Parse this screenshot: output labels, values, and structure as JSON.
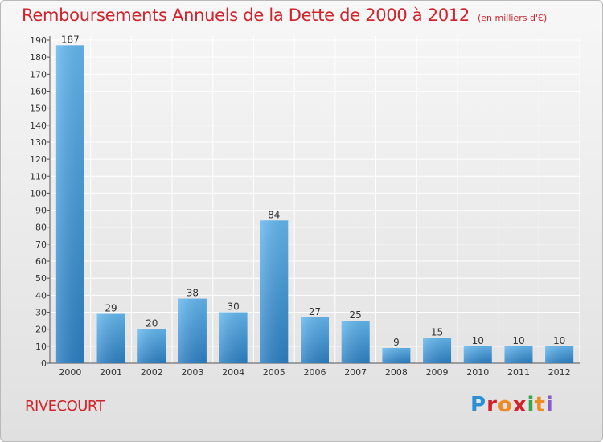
{
  "title": "Remboursements Annuels de la Dette de 2000 à 2012",
  "subtitle": "(en milliers d'€)",
  "commune": "RIVECOURT",
  "logo": {
    "letters": [
      "P",
      "r",
      "o",
      "x",
      "i",
      "t",
      "i"
    ],
    "colors": [
      "#2b8fd6",
      "#d2232a",
      "#f08a24",
      "#d2232a",
      "#3aa64c",
      "#f08a24",
      "#8a5bc7"
    ]
  },
  "colors": {
    "bar_light": "#63b7ee",
    "bar_dark": "#2c7fc3",
    "text_red": "#d2232a"
  },
  "chart_data": {
    "type": "bar",
    "categories": [
      "2000",
      "2001",
      "2002",
      "2003",
      "2004",
      "2005",
      "2006",
      "2007",
      "2008",
      "2009",
      "2010",
      "2011",
      "2012"
    ],
    "values": [
      187,
      29,
      20,
      38,
      30,
      84,
      27,
      25,
      9,
      15,
      10,
      10,
      10
    ],
    "data_labels": [
      "187",
      "29",
      "20",
      "38",
      "30",
      "84",
      "27",
      "25",
      "9",
      "15",
      "10",
      "10",
      "10"
    ],
    "title": "Remboursements Annuels de la Dette de 2000 à 2012",
    "xlabel": "",
    "ylabel": "",
    "ylim": [
      0,
      190
    ],
    "yticks": [
      0,
      10,
      20,
      30,
      40,
      50,
      60,
      70,
      80,
      90,
      100,
      110,
      120,
      130,
      140,
      150,
      160,
      170,
      180,
      190
    ],
    "grid": true
  }
}
